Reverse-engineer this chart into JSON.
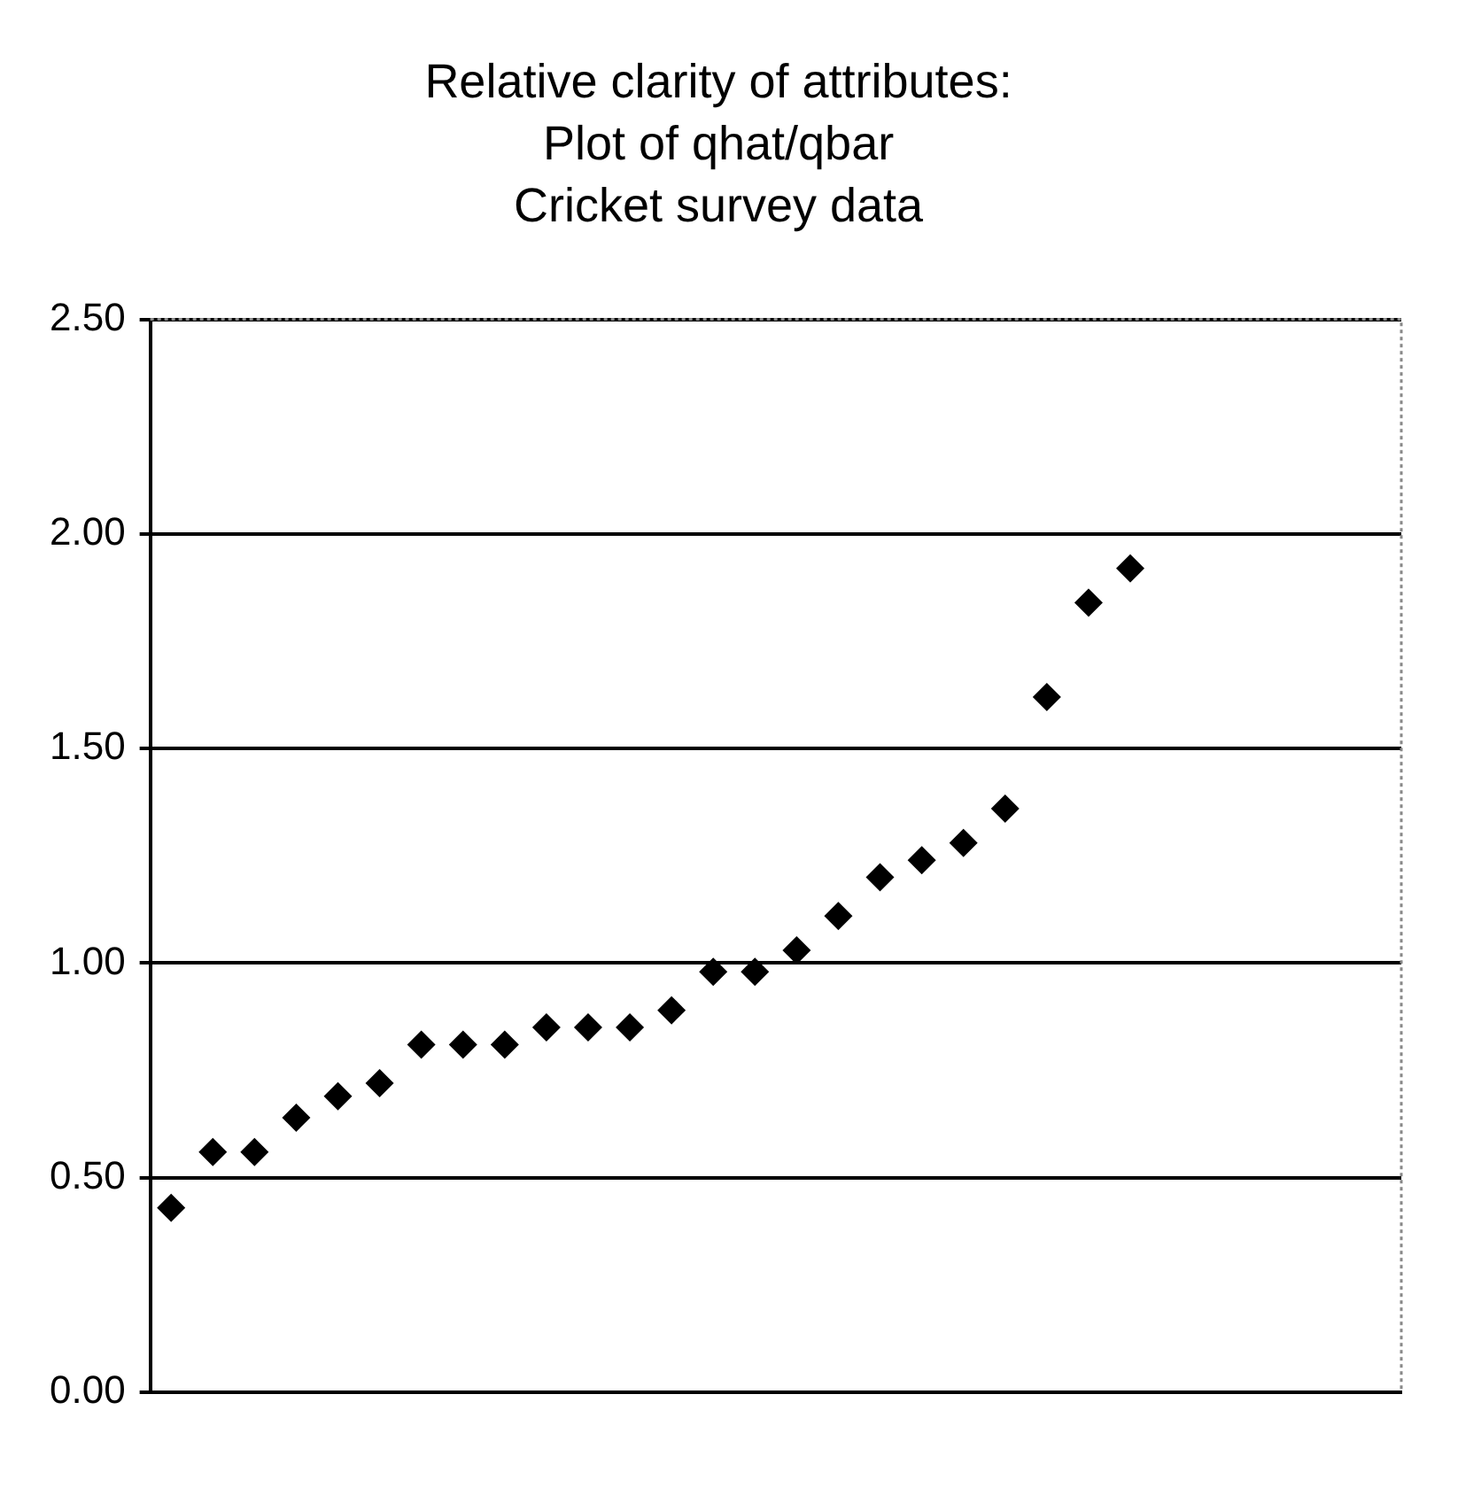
{
  "chart_data": {
    "type": "scatter",
    "title": "Relative clarity of attributes:\nPlot of qhat/qbar\nCricket survey data",
    "categories": [
      null,
      null,
      null,
      null,
      null,
      null,
      null,
      null,
      null,
      null,
      null,
      null,
      null,
      null,
      null,
      null,
      null,
      null,
      null,
      null,
      null,
      null,
      null,
      null,
      null,
      null,
      null,
      null,
      null,
      null
    ],
    "values": [
      0.43,
      0.56,
      0.56,
      0.64,
      0.69,
      0.72,
      0.81,
      0.81,
      0.81,
      0.85,
      0.85,
      0.85,
      0.89,
      0.98,
      0.98,
      1.03,
      1.11,
      1.2,
      1.24,
      1.28,
      1.36,
      1.62,
      1.84,
      1.92,
      null,
      null,
      null,
      null,
      null,
      null
    ],
    "color": "#000000",
    "marker": "diamond",
    "ylim": [
      0,
      2.5
    ],
    "yticks": [
      {
        "value": 0,
        "label": "0.00"
      },
      {
        "value": 0.5,
        "label": "0.50"
      },
      {
        "value": 1,
        "label": "1.00"
      },
      {
        "value": 1.5,
        "label": "1.50"
      },
      {
        "value": 2,
        "label": "2.00"
      },
      {
        "value": 2.5,
        "label": "2.50"
      }
    ],
    "grid": "y",
    "tick_labels": "y",
    "legend": false
  }
}
